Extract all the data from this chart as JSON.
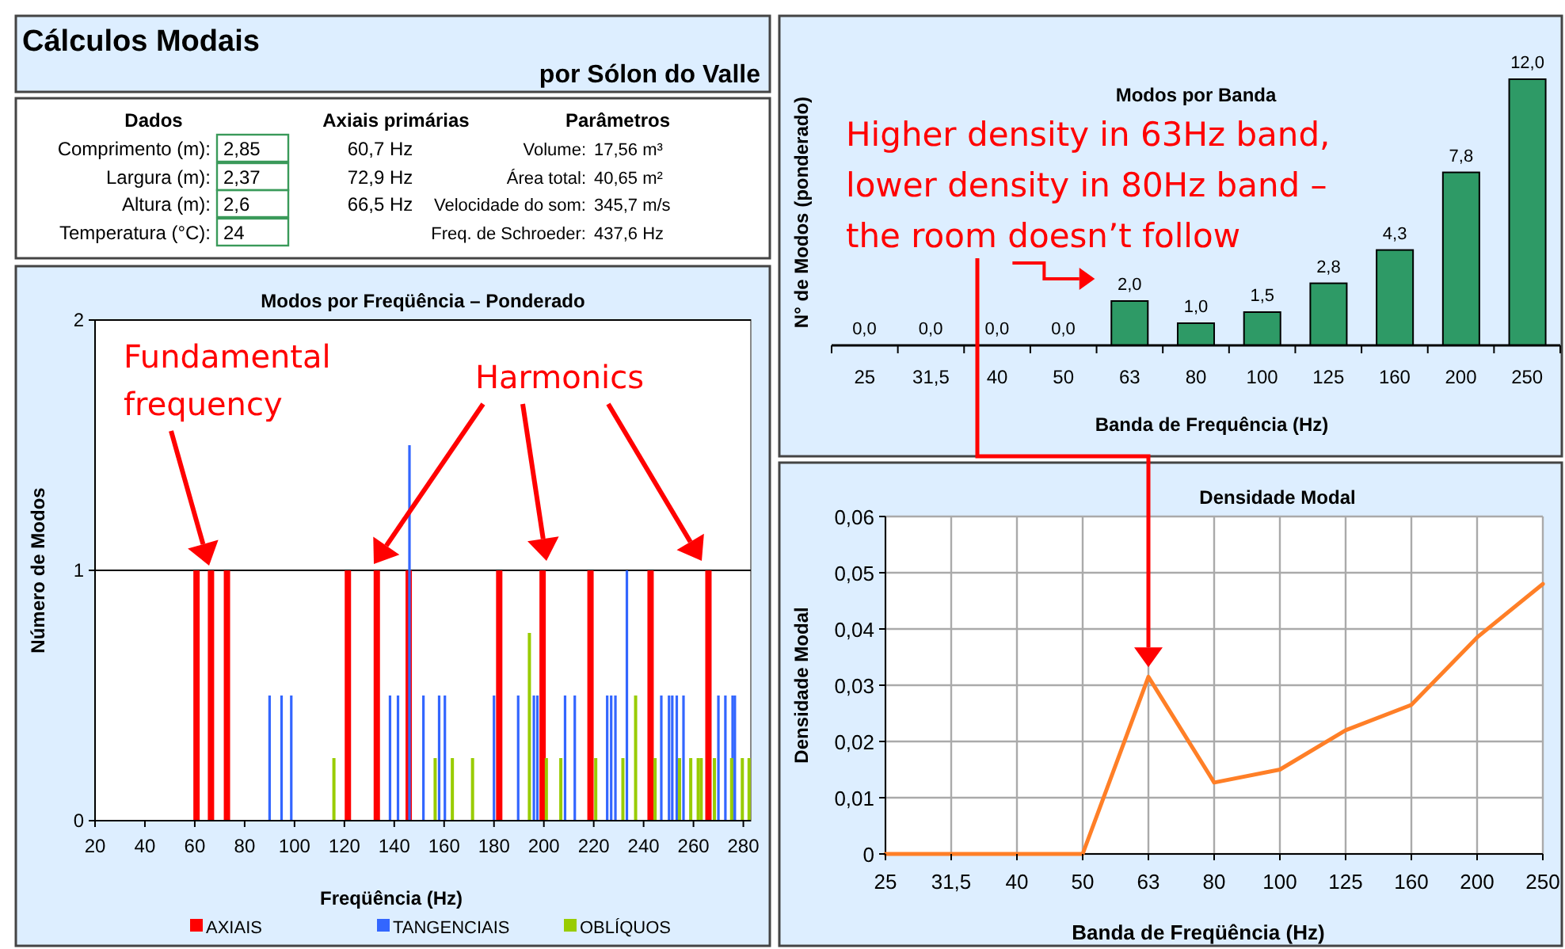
{
  "chart_data": [
    {
      "type": "other",
      "title": "Cálculos Modais",
      "subtitle": "por Sólon do Valle",
      "annotations": [
        "Dados",
        "Axiais primárias",
        "Parâmetros",
        "Comprimento (m):",
        "2,85",
        "60,7 Hz",
        "Volume:",
        "17,56 m³",
        "Largura (m):",
        "2,37",
        "72,9 Hz",
        "Área total:",
        "40,65 m²",
        "Altura (m):",
        "2,6",
        "66,5 Hz",
        "Velocidade do som:",
        "345,7 m/s",
        "Temperatura (°C):",
        "24",
        "Freq. de Schroeder:",
        "437,6 Hz"
      ]
    },
    {
      "type": "bar",
      "title": "Modos por Freqüência – Ponderado",
      "xlabel": "Freqüência (Hz)",
      "ylabel": "Número de Modos",
      "xlim": [
        20,
        283
      ],
      "xticks": [
        20,
        40,
        60,
        80,
        100,
        120,
        140,
        160,
        180,
        200,
        220,
        240,
        260,
        280
      ],
      "ylim": [
        0,
        2
      ],
      "yticks": [
        0,
        1,
        2
      ],
      "grid": "y",
      "legend": "bottom",
      "series": [
        {
          "name": "AXIAIS",
          "color": "#ff0000",
          "x": [
            60.7,
            66.5,
            72.9,
            121.4,
            133.0,
            145.8,
            182.1,
            199.5,
            218.7,
            242.8,
            266.0
          ],
          "values": [
            1,
            1,
            1,
            1,
            1,
            1,
            1,
            1,
            1,
            1,
            1
          ]
        },
        {
          "name": "TANGENCIAIS",
          "color": "#3366ff",
          "x": [
            90.0,
            94.8,
            98.7,
            138.3,
            141.5,
            146.1,
            151.7,
            158.0,
            160.3,
            180.0,
            189.7,
            196.0,
            197.4,
            208.5,
            212.4,
            225.4,
            227.0,
            228.7,
            233.3,
            247.1,
            250.2,
            251.5,
            253.3,
            256.0,
            270.0,
            272.8,
            275.7,
            276.6
          ],
          "values": [
            0.5,
            0.5,
            0.5,
            0.5,
            0.5,
            1.5,
            0.5,
            0.5,
            0.5,
            0.5,
            0.5,
            0.5,
            0.5,
            0.5,
            0.5,
            0.5,
            0.5,
            0.5,
            1,
            0.5,
            0.5,
            0.5,
            0.5,
            0.5,
            0.5,
            0.5,
            0.5,
            0.5
          ]
        },
        {
          "name": "OBLÍQUOS",
          "color": "#99cc00",
          "x": [
            115.8,
            156.4,
            163.3,
            171.4,
            194.2,
            201.0,
            206.8,
            220.8,
            231.7,
            236.8,
            244.6,
            254.4,
            258.9,
            261.9,
            263.1,
            268.4,
            275.3,
            279.6,
            282.3
          ],
          "values": [
            0.25,
            0.25,
            0.25,
            0.25,
            0.75,
            0.25,
            0.25,
            0.25,
            0.25,
            0.5,
            0.25,
            0.25,
            0.25,
            0.25,
            0.25,
            0.25,
            0.25,
            0.25,
            0.25
          ]
        }
      ],
      "annotations": [
        "Fundamental frequency",
        "Harmonics"
      ]
    },
    {
      "type": "bar",
      "title": "Modos por Banda",
      "xlabel": "Banda de Frequência (Hz)",
      "ylabel": "N° de Modos (ponderado)",
      "categories": [
        "25",
        "31,5",
        "40",
        "50",
        "63",
        "80",
        "100",
        "125",
        "160",
        "200",
        "250"
      ],
      "values": [
        0,
        0,
        0,
        0,
        2,
        1,
        1.5,
        2.8,
        4.3,
        7.8,
        12
      ],
      "color": "#2e9a66",
      "value_labels": [
        "0,0",
        "0,0",
        "0,0",
        "0,0",
        "2,0",
        "1,0",
        "1,5",
        "2,8",
        "4,3",
        "7,8",
        "12,0"
      ],
      "annotations": [
        {
          "text": "Higher density in 63Hz band, lower density in 80Hz band – the room doesn’t follow",
          "x": "63",
          "y": 2
        }
      ]
    },
    {
      "type": "line",
      "title": "Densidade Modal",
      "xlabel": "Banda de Freqüência (Hz)",
      "ylabel": "Densidade Modal",
      "categories": [
        "25",
        "31,5",
        "40",
        "50",
        "63",
        "80",
        "100",
        "125",
        "160",
        "200",
        "250"
      ],
      "values": [
        0,
        0,
        0,
        0,
        0.0315,
        0.0127,
        0.015,
        0.022,
        0.0265,
        0.0385,
        0.048
      ],
      "color": "#ff7f27",
      "ylim": [
        0,
        0.06
      ],
      "yticks": [
        0,
        {
          "value": 0.01,
          "label": "0,01"
        },
        {
          "value": 0.02,
          "label": "0,02"
        },
        {
          "value": 0.03,
          "label": "0,03"
        },
        {
          "value": 0.04,
          "label": "0,04"
        },
        {
          "value": 0.05,
          "label": "0,05"
        },
        {
          "value": 0.06,
          "label": "0,06"
        }
      ],
      "grid": true
    }
  ]
}
